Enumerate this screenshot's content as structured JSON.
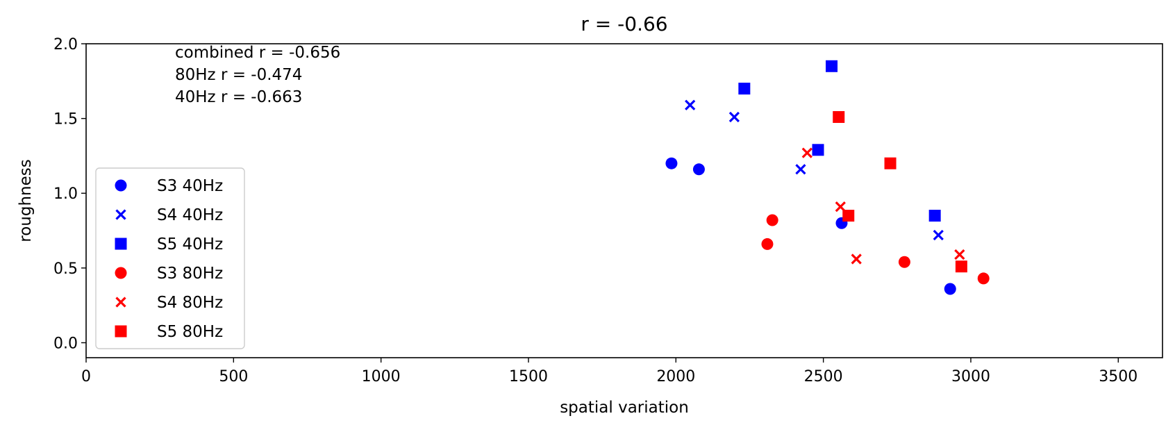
{
  "chart_data": {
    "type": "scatter",
    "title": "r = -0.66",
    "xlabel": "spatial variation",
    "ylabel": "roughness",
    "xlim": [
      0,
      3650
    ],
    "ylim": [
      -0.1,
      2.0
    ],
    "xticks": [
      0,
      500,
      1000,
      1500,
      2000,
      2500,
      3000,
      3500
    ],
    "yticks": [
      0.0,
      0.5,
      1.0,
      1.5,
      2.0
    ],
    "xtick_labels": [
      "0",
      "500",
      "1000",
      "1500",
      "2000",
      "2500",
      "3000",
      "3500"
    ],
    "ytick_labels": [
      "0.0",
      "0.5",
      "1.0",
      "1.5",
      "2.0"
    ],
    "grid": false,
    "legend_position": "lower-left",
    "annotations": [
      "combined r = -0.656",
      "80Hz r = -0.474",
      "40Hz r = -0.663"
    ],
    "series": [
      {
        "name": "S3 40Hz",
        "marker": "circle",
        "color": "#0000ff",
        "points": [
          [
            1985,
            1.2
          ],
          [
            2078,
            1.16
          ],
          [
            2562,
            0.8
          ],
          [
            2930,
            0.36
          ]
        ]
      },
      {
        "name": "S4 40Hz",
        "marker": "x",
        "color": "#0000ff",
        "points": [
          [
            2048,
            1.59
          ],
          [
            2198,
            1.51
          ],
          [
            2423,
            1.16
          ],
          [
            2890,
            0.72
          ]
        ]
      },
      {
        "name": "S5 40Hz",
        "marker": "square",
        "color": "#0000ff",
        "points": [
          [
            2232,
            1.7
          ],
          [
            2528,
            1.85
          ],
          [
            2482,
            1.29
          ],
          [
            2878,
            0.85
          ]
        ]
      },
      {
        "name": "S3 80Hz",
        "marker": "circle",
        "color": "#ff0000",
        "points": [
          [
            2327,
            0.82
          ],
          [
            2310,
            0.66
          ],
          [
            2775,
            0.54
          ],
          [
            3043,
            0.43
          ]
        ]
      },
      {
        "name": "S4 80Hz",
        "marker": "x",
        "color": "#ff0000",
        "points": [
          [
            2445,
            1.27
          ],
          [
            2558,
            0.91
          ],
          [
            2612,
            0.56
          ],
          [
            2962,
            0.59
          ]
        ]
      },
      {
        "name": "S5 80Hz",
        "marker": "square",
        "color": "#ff0000",
        "points": [
          [
            2552,
            1.51
          ],
          [
            2727,
            1.2
          ],
          [
            2585,
            0.85
          ],
          [
            2968,
            0.51
          ]
        ]
      }
    ]
  }
}
